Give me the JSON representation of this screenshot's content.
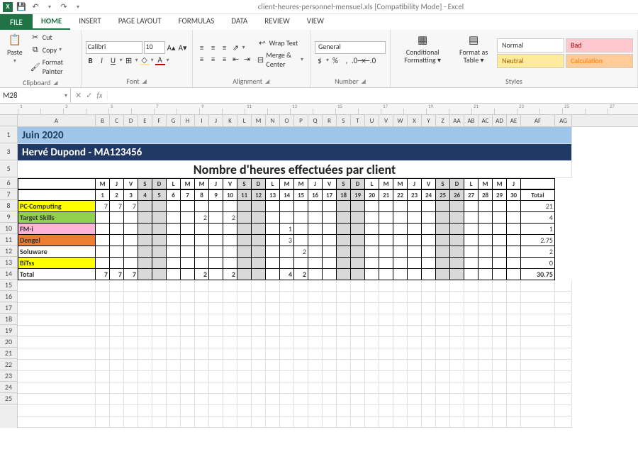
{
  "window": {
    "title": "client-heures-personnel-mensuel.xls [Compatibility Mode] - Excel"
  },
  "ribbon": {
    "file": "FILE",
    "tabs": [
      "HOME",
      "INSERT",
      "PAGE LAYOUT",
      "FORMULAS",
      "DATA",
      "REVIEW",
      "VIEW"
    ],
    "activeTab": 0,
    "clipboard": {
      "label": "Clipboard",
      "paste": "Paste",
      "cut": "Cut",
      "copy": "Copy",
      "format_painter": "Format Painter"
    },
    "font": {
      "label": "Font",
      "name": "Calibri",
      "size": "10",
      "bold": "B",
      "italic": "I",
      "underline": "U"
    },
    "alignment": {
      "label": "Alignment",
      "wrap": "Wrap Text",
      "merge": "Merge & Center"
    },
    "number": {
      "label": "Number",
      "format": "General"
    },
    "styles": {
      "label": "Styles",
      "cond_fmt": "Conditional Formatting",
      "fmt_table": "Format as Table",
      "cells": {
        "normal": "Normal",
        "bad": "Bad",
        "neutral": "Neutral",
        "calc": "Calculation"
      }
    }
  },
  "namebox": "M28",
  "sheet": {
    "columns": [
      "A",
      "B",
      "C",
      "D",
      "E",
      "F",
      "G",
      "H",
      "I",
      "J",
      "K",
      "L",
      "M",
      "N",
      "O",
      "P",
      "Q",
      "R",
      "S",
      "T",
      "U",
      "V",
      "W",
      "X",
      "Y",
      "Z",
      "AA",
      "AB",
      "AC",
      "AD",
      "AE",
      "AF",
      "AG"
    ],
    "colA_width": 110,
    "day_col_width": 20,
    "total_col_width": 48,
    "banner_month": "Juin 2020",
    "banner_person": "Hervé Dupond -  MA123456",
    "title": "Nombre d'heures effectuées par client",
    "day_letters": [
      "M",
      "J",
      "V",
      "S",
      "D",
      "L",
      "M",
      "M",
      "J",
      "V",
      "S",
      "D",
      "L",
      "M",
      "M",
      "J",
      "V",
      "S",
      "D",
      "L",
      "M",
      "M",
      "J",
      "V",
      "S",
      "D",
      "L",
      "M",
      "M",
      "J"
    ],
    "day_nums": [
      "1",
      "2",
      "3",
      "4",
      "5",
      "6",
      "7",
      "8",
      "9",
      "10",
      "11",
      "12",
      "13",
      "14",
      "15",
      "16",
      "17",
      "18",
      "19",
      "20",
      "21",
      "22",
      "23",
      "24",
      "25",
      "26",
      "27",
      "28",
      "29",
      "30"
    ],
    "weekend_idx": [
      3,
      4,
      10,
      11,
      17,
      18,
      24,
      25
    ],
    "total_header": "Total",
    "rows": [
      {
        "label": "PC-Computing",
        "color": "#ffff00",
        "vals": [
          "7",
          "7",
          "7",
          "",
          "",
          "",
          "",
          "",
          "",
          "",
          "",
          "",
          "",
          "",
          "",
          "",
          "",
          "",
          "",
          "",
          "",
          "",
          "",
          "",
          "",
          "",
          "",
          "",
          "",
          ""
        ],
        "total": "21"
      },
      {
        "label": "Target Skills",
        "color": "#92d050",
        "vals": [
          "",
          "",
          "",
          "",
          "",
          "",
          "",
          "2",
          "",
          "2",
          "",
          "",
          "",
          "",
          "",
          "",
          "",
          "",
          "",
          "",
          "",
          "",
          "",
          "",
          "",
          "",
          "",
          "",
          "",
          ""
        ],
        "total": "4"
      },
      {
        "label": "FM-i",
        "color": "#ffb3d9",
        "vals": [
          "",
          "",
          "",
          "",
          "",
          "",
          "",
          "",
          "",
          "",
          "",
          "",
          "",
          "1",
          "",
          "",
          "",
          "",
          "",
          "",
          "",
          "",
          "",
          "",
          "",
          "",
          "",
          "",
          "",
          ""
        ],
        "total": "1"
      },
      {
        "label": "Dengel",
        "color": "#ed7d31",
        "vals": [
          "",
          "",
          "",
          "",
          "",
          "",
          "",
          "",
          "",
          "",
          "",
          "",
          "",
          "3",
          "",
          "",
          "",
          "",
          "",
          "",
          "",
          "",
          "",
          "",
          "",
          "",
          "",
          "",
          "",
          ""
        ],
        "total": "2.75"
      },
      {
        "label": "Soluware",
        "color": "#ffffff",
        "vals": [
          "",
          "",
          "",
          "",
          "",
          "",
          "",
          "",
          "",
          "",
          "",
          "",
          "",
          "",
          "2",
          "",
          "",
          "",
          "",
          "",
          "",
          "",
          "",
          "",
          "",
          "",
          "",
          "",
          "",
          ""
        ],
        "total": "2"
      },
      {
        "label": "BiTss",
        "color": "#ffff00",
        "vals": [
          "",
          "",
          "",
          "",
          "",
          "",
          "",
          "",
          "",
          "",
          "",
          "",
          "",
          "",
          "",
          "",
          "",
          "",
          "",
          "",
          "",
          "",
          "",
          "",
          "",
          "",
          "",
          "",
          "",
          ""
        ],
        "total": "0"
      }
    ],
    "total_row": {
      "label": "Total",
      "vals": [
        "7",
        "7",
        "7",
        "",
        "",
        "",
        "",
        "2",
        "",
        "2",
        "",
        "",
        "",
        "4",
        "2",
        "",
        "",
        "",
        "",
        "",
        "",
        "",
        "",
        "",
        "",
        "",
        "",
        "",
        "",
        ""
      ],
      "total": "30.75"
    },
    "visible_row_numbers": [
      1,
      3,
      5,
      6,
      7,
      8,
      9,
      10,
      11,
      12,
      13,
      14,
      15,
      16,
      17,
      18,
      19,
      20,
      21,
      22,
      23,
      24,
      25
    ]
  }
}
